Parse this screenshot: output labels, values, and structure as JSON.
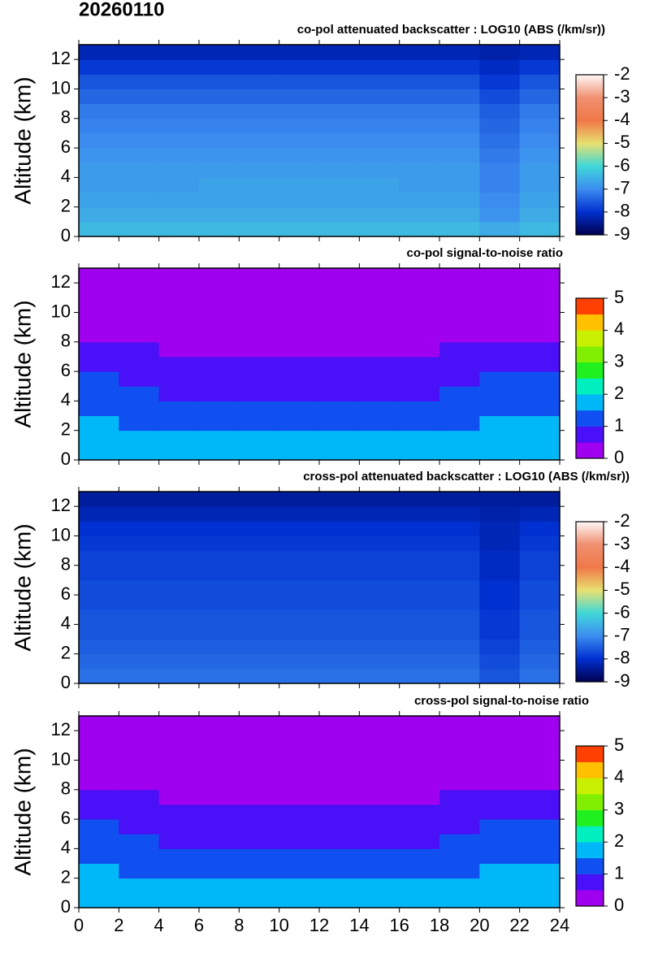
{
  "title": "20260110",
  "chart_data": [
    {
      "type": "heatmap",
      "title": "co-pol attenuated backscatter : LOG10 (ABS (/km/sr))",
      "ylabel": "Altitude (km)",
      "xlim": [
        0,
        24
      ],
      "ylim": [
        0,
        13
      ],
      "xticks": [
        0,
        2,
        4,
        6,
        8,
        10,
        12,
        14,
        16,
        18,
        20,
        22,
        24
      ],
      "yticks": [
        0,
        2,
        4,
        6,
        8,
        10,
        12
      ],
      "xtick_labels": false,
      "xbins": [
        0,
        2,
        4,
        6,
        8,
        10,
        12,
        14,
        16,
        18,
        20,
        22,
        24
      ],
      "ybins": [
        0,
        1,
        2,
        3,
        4,
        5,
        6,
        7,
        8,
        9,
        10,
        11,
        12,
        13
      ],
      "z": [
        [
          -6.4,
          -6.4,
          -6.4,
          -6.4,
          -6.4,
          -6.4,
          -6.4,
          -6.4,
          -6.4,
          -6.4,
          -6.6,
          -6.4
        ],
        [
          -6.6,
          -6.6,
          -6.6,
          -6.6,
          -6.6,
          -6.6,
          -6.6,
          -6.6,
          -6.6,
          -6.6,
          -6.9,
          -6.6
        ],
        [
          -6.7,
          -6.7,
          -6.7,
          -6.7,
          -6.7,
          -6.7,
          -6.7,
          -6.7,
          -6.7,
          -6.7,
          -7.0,
          -6.7
        ],
        [
          -6.8,
          -6.8,
          -6.8,
          -6.7,
          -6.7,
          -6.7,
          -6.7,
          -6.7,
          -6.8,
          -6.8,
          -7.1,
          -6.8
        ],
        [
          -6.8,
          -6.8,
          -6.8,
          -6.8,
          -6.8,
          -6.8,
          -6.8,
          -6.8,
          -6.8,
          -6.8,
          -7.1,
          -6.8
        ],
        [
          -6.9,
          -6.9,
          -6.9,
          -6.9,
          -6.9,
          -6.9,
          -6.9,
          -6.9,
          -6.9,
          -6.9,
          -7.2,
          -6.9
        ],
        [
          -7.0,
          -7.0,
          -7.0,
          -7.0,
          -7.0,
          -7.0,
          -7.0,
          -7.0,
          -7.0,
          -7.0,
          -7.3,
          -7.0
        ],
        [
          -7.1,
          -7.1,
          -7.1,
          -7.1,
          -7.1,
          -7.1,
          -7.1,
          -7.1,
          -7.1,
          -7.1,
          -7.4,
          -7.1
        ],
        [
          -7.2,
          -7.2,
          -7.2,
          -7.2,
          -7.2,
          -7.2,
          -7.2,
          -7.2,
          -7.2,
          -7.2,
          -7.5,
          -7.2
        ],
        [
          -7.4,
          -7.4,
          -7.4,
          -7.4,
          -7.4,
          -7.4,
          -7.4,
          -7.4,
          -7.4,
          -7.4,
          -7.7,
          -7.4
        ],
        [
          -7.6,
          -7.6,
          -7.6,
          -7.6,
          -7.6,
          -7.6,
          -7.6,
          -7.6,
          -7.6,
          -7.6,
          -7.9,
          -7.6
        ],
        [
          -7.9,
          -7.9,
          -7.9,
          -7.9,
          -7.9,
          -7.9,
          -7.9,
          -7.9,
          -7.9,
          -7.9,
          -8.1,
          -7.9
        ],
        [
          -8.2,
          -8.2,
          -8.2,
          -8.2,
          -8.2,
          -8.2,
          -8.2,
          -8.2,
          -8.2,
          -8.2,
          -8.3,
          -8.2
        ]
      ],
      "colorbar": {
        "lim": [
          -9,
          -2
        ],
        "ticks": [
          -9,
          -8,
          -7,
          -6,
          -5,
          -4,
          -3,
          -2
        ],
        "discrete": false,
        "colors": [
          "#000050",
          "#0030d0",
          "#3c8cf0",
          "#40d8d8",
          "#e8e070",
          "#f07848",
          "#f09070",
          "#fff8f8"
        ]
      }
    },
    {
      "type": "heatmap",
      "title": "co-pol signal-to-noise ratio",
      "ylabel": "Altitude (km)",
      "xlim": [
        0,
        24
      ],
      "ylim": [
        0,
        13
      ],
      "xticks": [
        0,
        2,
        4,
        6,
        8,
        10,
        12,
        14,
        16,
        18,
        20,
        22,
        24
      ],
      "yticks": [
        0,
        2,
        4,
        6,
        8,
        10,
        12
      ],
      "xtick_labels": false,
      "xbins": [
        0,
        2,
        4,
        6,
        8,
        10,
        12,
        14,
        16,
        18,
        20,
        22,
        24
      ],
      "ybins": [
        0,
        1,
        2,
        3,
        4,
        5,
        6,
        7,
        8,
        9,
        10,
        11,
        12,
        13
      ],
      "z": [
        [
          1.8,
          1.8,
          1.8,
          1.8,
          1.8,
          1.8,
          1.8,
          1.8,
          1.8,
          1.8,
          1.8,
          1.8
        ],
        [
          1.8,
          1.8,
          1.6,
          1.6,
          1.6,
          1.6,
          1.6,
          1.6,
          1.6,
          1.8,
          1.8,
          1.8
        ],
        [
          1.6,
          1.4,
          1.3,
          1.3,
          1.3,
          1.3,
          1.3,
          1.3,
          1.3,
          1.3,
          1.6,
          1.6
        ],
        [
          1.2,
          1.2,
          1.2,
          1.2,
          1.2,
          1.2,
          1.2,
          1.2,
          1.2,
          1.2,
          1.2,
          1.2
        ],
        [
          1.1,
          1.1,
          0.9,
          0.9,
          0.9,
          0.9,
          0.9,
          0.9,
          0.9,
          1.1,
          1.1,
          1.1
        ],
        [
          1.0,
          0.9,
          0.8,
          0.8,
          0.8,
          0.8,
          0.8,
          0.8,
          0.8,
          0.9,
          1.0,
          1.0
        ],
        [
          0.8,
          0.8,
          0.6,
          0.6,
          0.6,
          0.6,
          0.6,
          0.6,
          0.6,
          0.8,
          0.8,
          0.8
        ],
        [
          0.55,
          0.55,
          0.4,
          0.4,
          0.4,
          0.4,
          0.4,
          0.4,
          0.4,
          0.55,
          0.55,
          0.55
        ],
        [
          0.4,
          0.4,
          0.4,
          0.4,
          0.4,
          0.4,
          0.4,
          0.4,
          0.4,
          0.4,
          0.4,
          0.4
        ],
        [
          0.3,
          0.3,
          0.3,
          0.3,
          0.3,
          0.3,
          0.3,
          0.3,
          0.3,
          0.3,
          0.3,
          0.3
        ],
        [
          0.2,
          0.2,
          0.2,
          0.2,
          0.2,
          0.2,
          0.2,
          0.2,
          0.2,
          0.2,
          0.2,
          0.2
        ],
        [
          0.1,
          0.1,
          0.1,
          0.1,
          0.1,
          0.1,
          0.1,
          0.1,
          0.1,
          0.1,
          0.1,
          0.1
        ],
        [
          0.1,
          0.1,
          0.1,
          0.1,
          0.1,
          0.1,
          0.1,
          0.1,
          0.1,
          0.1,
          0.1,
          0.1
        ]
      ],
      "colorbar": {
        "lim": [
          0,
          5
        ],
        "ticks": [
          0,
          1,
          2,
          3,
          4,
          5
        ],
        "discrete": true,
        "colors": [
          "#a000f0",
          "#4a10f8",
          "#1050f0",
          "#00b8f8",
          "#00f0c0",
          "#20f020",
          "#80f000",
          "#c8f000",
          "#ffc000",
          "#ff4000"
        ]
      }
    },
    {
      "type": "heatmap",
      "title": "cross-pol attenuated backscatter : LOG10 (ABS (/km/sr))",
      "ylabel": "Altitude (km)",
      "xlim": [
        0,
        24
      ],
      "ylim": [
        0,
        13
      ],
      "xticks": [
        0,
        2,
        4,
        6,
        8,
        10,
        12,
        14,
        16,
        18,
        20,
        22,
        24
      ],
      "yticks": [
        0,
        2,
        4,
        6,
        8,
        10,
        12
      ],
      "xtick_labels": false,
      "xbins": [
        0,
        2,
        4,
        6,
        8,
        10,
        12,
        14,
        16,
        18,
        20,
        22,
        24
      ],
      "ybins": [
        0,
        1,
        2,
        3,
        4,
        5,
        6,
        7,
        8,
        9,
        10,
        11,
        12,
        13
      ],
      "z": [
        [
          -7.3,
          -7.3,
          -7.3,
          -7.3,
          -7.3,
          -7.3,
          -7.3,
          -7.3,
          -7.3,
          -7.3,
          -7.6,
          -7.3
        ],
        [
          -7.4,
          -7.4,
          -7.4,
          -7.4,
          -7.4,
          -7.4,
          -7.4,
          -7.4,
          -7.4,
          -7.4,
          -7.7,
          -7.4
        ],
        [
          -7.5,
          -7.5,
          -7.5,
          -7.5,
          -7.5,
          -7.5,
          -7.5,
          -7.5,
          -7.5,
          -7.5,
          -7.8,
          -7.5
        ],
        [
          -7.6,
          -7.6,
          -7.6,
          -7.6,
          -7.6,
          -7.6,
          -7.6,
          -7.6,
          -7.6,
          -7.6,
          -7.9,
          -7.6
        ],
        [
          -7.6,
          -7.6,
          -7.6,
          -7.6,
          -7.6,
          -7.6,
          -7.6,
          -7.6,
          -7.6,
          -7.6,
          -7.9,
          -7.6
        ],
        [
          -7.7,
          -7.7,
          -7.7,
          -7.7,
          -7.7,
          -7.7,
          -7.7,
          -7.7,
          -7.7,
          -7.7,
          -8.0,
          -7.7
        ],
        [
          -7.7,
          -7.7,
          -7.7,
          -7.7,
          -7.7,
          -7.7,
          -7.7,
          -7.7,
          -7.7,
          -7.7,
          -8.0,
          -7.7
        ],
        [
          -7.8,
          -7.8,
          -7.8,
          -7.8,
          -7.8,
          -7.8,
          -7.8,
          -7.8,
          -7.8,
          -7.8,
          -8.1,
          -7.8
        ],
        [
          -7.8,
          -7.8,
          -7.8,
          -7.8,
          -7.8,
          -7.8,
          -7.8,
          -7.8,
          -7.8,
          -7.8,
          -8.1,
          -7.8
        ],
        [
          -7.9,
          -7.9,
          -7.9,
          -7.9,
          -7.9,
          -7.9,
          -7.9,
          -7.9,
          -7.9,
          -7.9,
          -8.2,
          -7.9
        ],
        [
          -8.0,
          -8.0,
          -8.0,
          -8.0,
          -8.0,
          -8.0,
          -8.0,
          -8.0,
          -8.0,
          -8.0,
          -8.2,
          -8.0
        ],
        [
          -8.2,
          -8.2,
          -8.2,
          -8.2,
          -8.2,
          -8.2,
          -8.2,
          -8.2,
          -8.2,
          -8.2,
          -8.3,
          -8.2
        ],
        [
          -8.4,
          -8.4,
          -8.4,
          -8.4,
          -8.4,
          -8.4,
          -8.4,
          -8.4,
          -8.4,
          -8.4,
          -8.4,
          -8.4
        ]
      ],
      "colorbar": {
        "lim": [
          -9,
          -2
        ],
        "ticks": [
          -9,
          -8,
          -7,
          -6,
          -5,
          -4,
          -3,
          -2
        ],
        "discrete": false,
        "colors": [
          "#000050",
          "#0030d0",
          "#3c8cf0",
          "#40d8d8",
          "#e8e070",
          "#f07848",
          "#f09070",
          "#fff8f8"
        ]
      }
    },
    {
      "type": "heatmap",
      "title": "cross-pol signal-to-noise ratio",
      "ylabel": "Altitude (km)",
      "xlim": [
        0,
        24
      ],
      "ylim": [
        0,
        13
      ],
      "xticks": [
        0,
        2,
        4,
        6,
        8,
        10,
        12,
        14,
        16,
        18,
        20,
        22,
        24
      ],
      "yticks": [
        0,
        2,
        4,
        6,
        8,
        10,
        12
      ],
      "xtick_labels": true,
      "xbins": [
        0,
        2,
        4,
        6,
        8,
        10,
        12,
        14,
        16,
        18,
        20,
        22,
        24
      ],
      "ybins": [
        0,
        1,
        2,
        3,
        4,
        5,
        6,
        7,
        8,
        9,
        10,
        11,
        12,
        13
      ],
      "z": [
        [
          1.8,
          1.8,
          1.8,
          1.8,
          1.8,
          1.8,
          1.8,
          1.8,
          1.8,
          1.8,
          1.8,
          1.8
        ],
        [
          1.8,
          1.8,
          1.6,
          1.6,
          1.6,
          1.6,
          1.6,
          1.6,
          1.6,
          1.8,
          1.8,
          1.8
        ],
        [
          1.6,
          1.4,
          1.3,
          1.3,
          1.3,
          1.3,
          1.3,
          1.3,
          1.3,
          1.3,
          1.5,
          1.6
        ],
        [
          1.2,
          1.2,
          1.2,
          1.2,
          1.2,
          1.2,
          1.2,
          1.2,
          1.2,
          1.2,
          1.2,
          1.2
        ],
        [
          1.1,
          1.1,
          0.9,
          0.9,
          0.9,
          0.9,
          0.9,
          0.9,
          0.9,
          1.1,
          1.1,
          1.1
        ],
        [
          1.0,
          0.9,
          0.8,
          0.8,
          0.8,
          0.8,
          0.8,
          0.8,
          0.8,
          0.9,
          1.0,
          1.0
        ],
        [
          0.8,
          0.7,
          0.6,
          0.6,
          0.6,
          0.6,
          0.6,
          0.6,
          0.6,
          0.7,
          0.8,
          0.8
        ],
        [
          0.5,
          0.5,
          0.4,
          0.4,
          0.4,
          0.4,
          0.4,
          0.4,
          0.4,
          0.5,
          0.5,
          0.5
        ],
        [
          0.4,
          0.4,
          0.3,
          0.3,
          0.3,
          0.3,
          0.3,
          0.3,
          0.3,
          0.4,
          0.4,
          0.4
        ],
        [
          0.3,
          0.3,
          0.3,
          0.3,
          0.3,
          0.3,
          0.3,
          0.3,
          0.3,
          0.3,
          0.3,
          0.3
        ],
        [
          0.2,
          0.2,
          0.2,
          0.2,
          0.2,
          0.2,
          0.2,
          0.2,
          0.2,
          0.2,
          0.2,
          0.2
        ],
        [
          0.1,
          0.1,
          0.1,
          0.1,
          0.1,
          0.1,
          0.1,
          0.1,
          0.1,
          0.1,
          0.1,
          0.1
        ],
        [
          0.1,
          0.1,
          0.1,
          0.1,
          0.1,
          0.1,
          0.1,
          0.1,
          0.1,
          0.1,
          0.1,
          0.1
        ]
      ],
      "colorbar": {
        "lim": [
          0,
          5
        ],
        "ticks": [
          0,
          1,
          2,
          3,
          4,
          5
        ],
        "discrete": true,
        "colors": [
          "#a000f0",
          "#4a10f8",
          "#1050f0",
          "#00b8f8",
          "#00f0c0",
          "#20f020",
          "#80f000",
          "#c8f000",
          "#ffc000",
          "#ff4000"
        ]
      }
    }
  ]
}
